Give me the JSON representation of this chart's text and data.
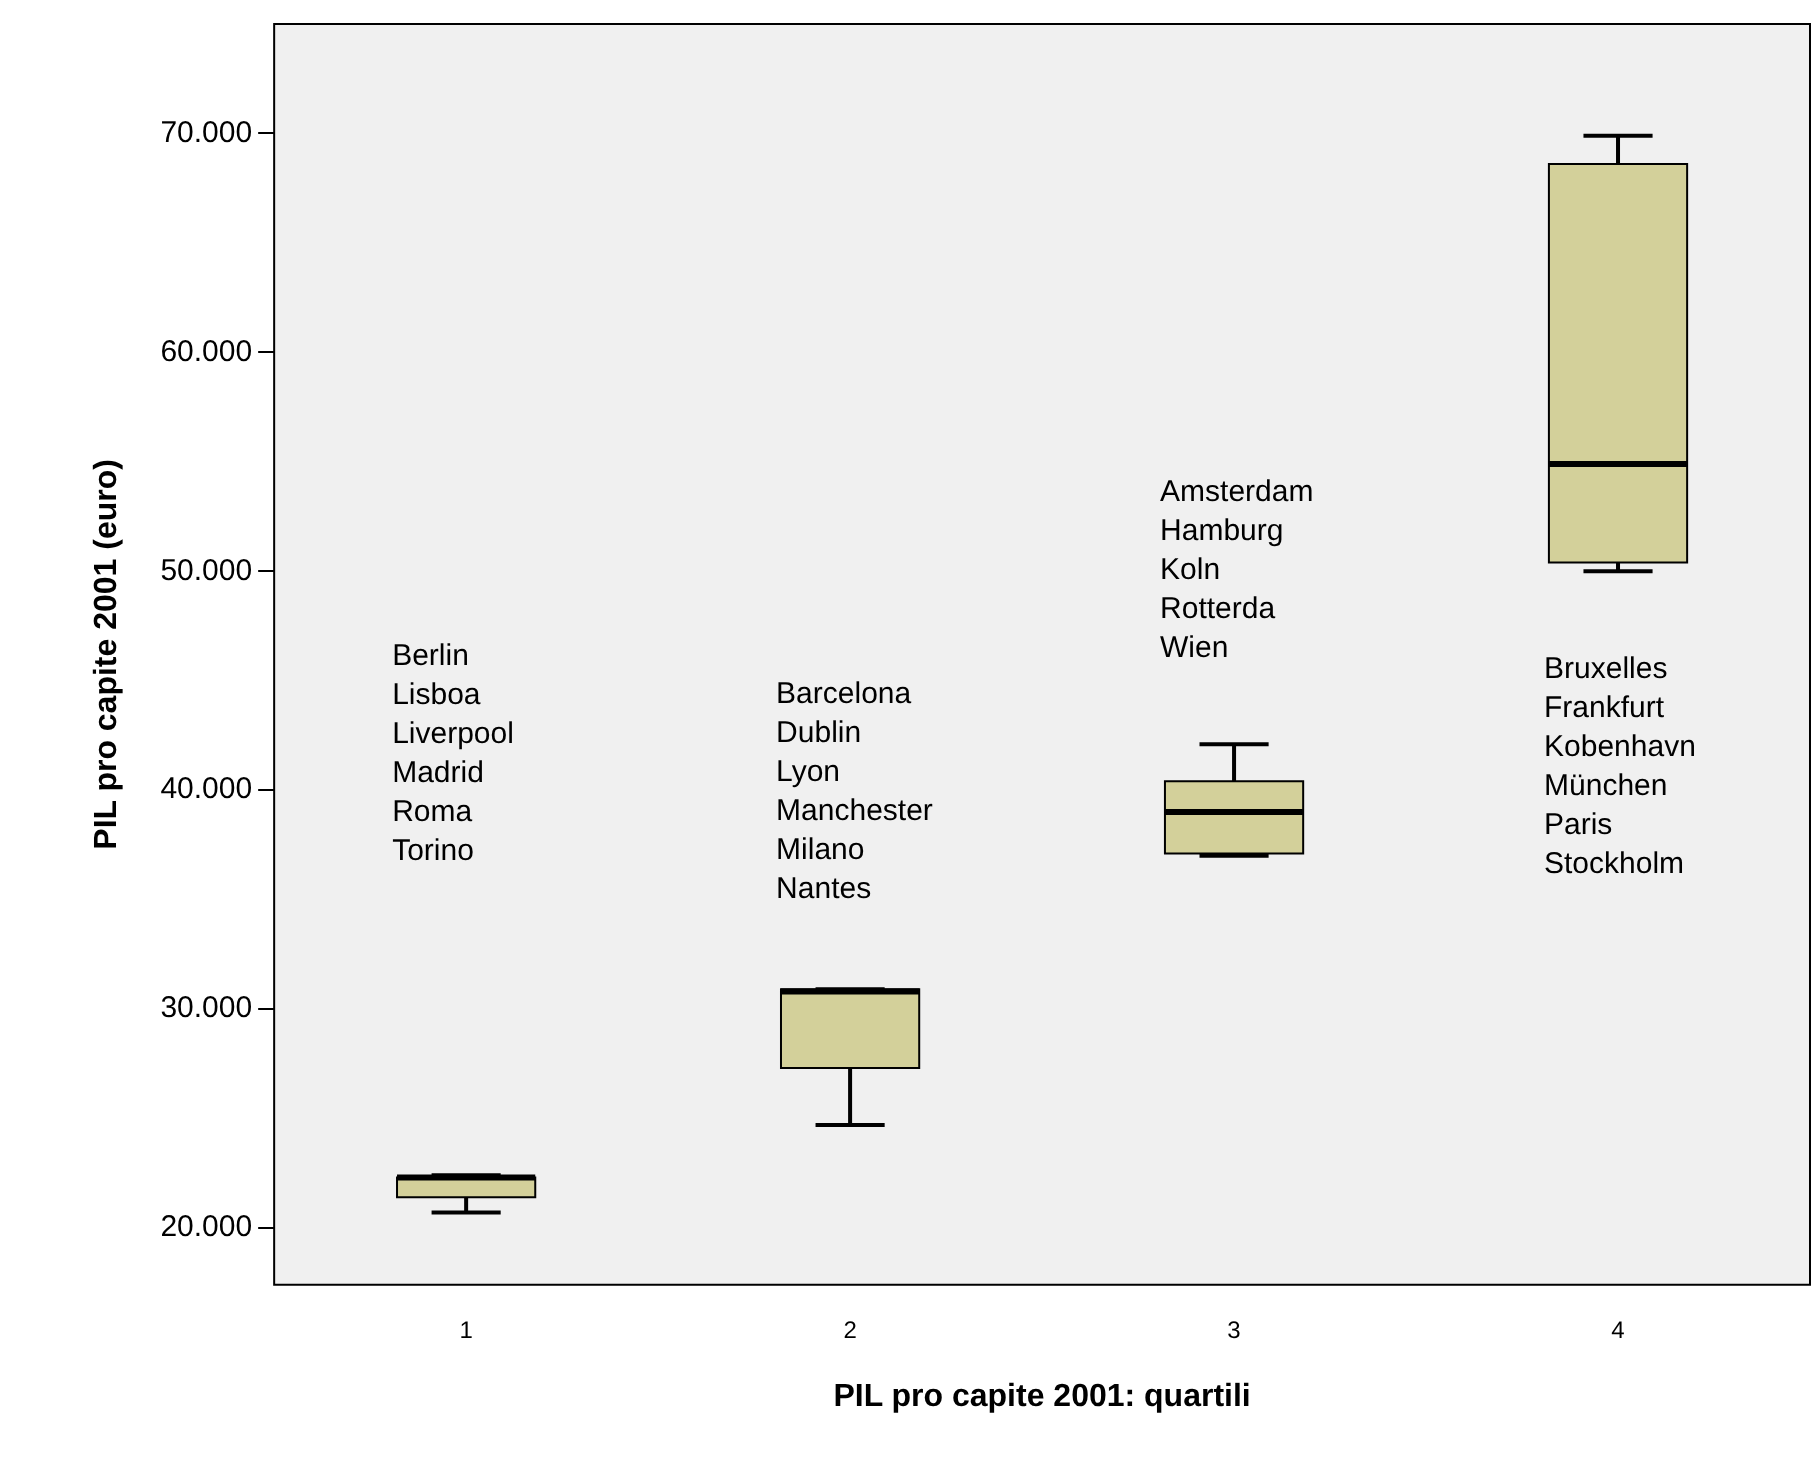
{
  "chart_data": {
    "type": "box",
    "xlabel": "PIL pro capite 2001: quartili",
    "ylabel": "PIL pro capite 2001 (euro)",
    "categories": [
      "1",
      "2",
      "3",
      "4"
    ],
    "color": "#d3d09a",
    "boxes": [
      {
        "low": 20700,
        "q1": 21400,
        "median": 22300,
        "q3": 22300,
        "high": 22400
      },
      {
        "low": 24700,
        "q1": 27300,
        "median": 30800,
        "q3": 30900,
        "high": 30900
      },
      {
        "low": 37000,
        "q1": 37100,
        "median": 39000,
        "q3": 40400,
        "high": 42100
      },
      {
        "low": 50000,
        "q1": 50400,
        "median": 54900,
        "q3": 68600,
        "high": 69900
      }
    ],
    "ylim": [
      17400,
      75000
    ],
    "yticks": [
      {
        "value": 20000,
        "label": "20.000"
      },
      {
        "value": 30000,
        "label": "30.000"
      },
      {
        "value": 40000,
        "label": "40.000"
      },
      {
        "value": 50000,
        "label": "50.000"
      },
      {
        "value": 60000,
        "label": "60.000"
      },
      {
        "value": 70000,
        "label": "70.000"
      }
    ],
    "annotations": [
      "Berlin\nLisboa\nLiverpool\nMadrid\nRoma\nTorino",
      "Barcelona\nDublin\nLyon\nManchester\nMilano\nNantes",
      "Amsterdam\nHamburg\nKoln\nRotterda\nWien",
      "Bruxelles\nFrankfurt\nKobenhavn\nMünchen\nParis\nStockholm"
    ]
  }
}
